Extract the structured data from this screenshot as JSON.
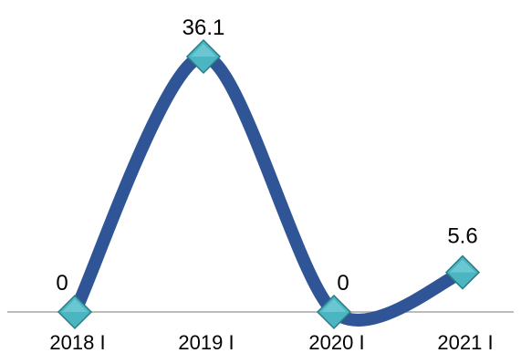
{
  "chart_data": {
    "type": "line",
    "categories": [
      "2018 I",
      "2019 I",
      "2020 I",
      "2021 I"
    ],
    "series": [
      {
        "values": [
          0,
          36.1,
          0,
          5.6
        ],
        "data_labels": [
          "0",
          "36.1",
          "0",
          "5.6"
        ]
      }
    ],
    "smooth": true,
    "marker": "diamond",
    "title": "",
    "xlabel": "",
    "ylabel": "",
    "ylim": [
      0,
      40
    ],
    "grid": false,
    "legend": "none",
    "colors": {
      "line": "#2F5597",
      "marker_fill": "#4BB5C1",
      "marker_stroke": "#2B7C86",
      "axis": "#A6A6A6"
    }
  }
}
